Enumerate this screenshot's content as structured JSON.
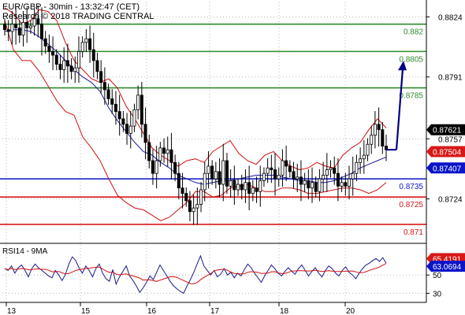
{
  "header": {
    "line1": "EUR/GBP - 30min - 13:32:47 (CET)",
    "line2": "Research © 2018 TRADING CENTRAL"
  },
  "colors": {
    "green_level": "#2e8b2e",
    "blue_level": "#0a14c8",
    "red_level": "#d81818",
    "bollinger": "#d01010",
    "ma": "#1a1aa0",
    "forecast": "#000080",
    "price": "#000000",
    "rsi": "#1a1a8c",
    "rsi_ma": "#d01010",
    "grid": "#b8b8b8"
  },
  "chart_data": [
    {
      "type": "candlestick",
      "title": "EUR/GBP - 30min - 13:32:47 (CET)",
      "x_labels": [
        "13",
        "15",
        "16",
        "17",
        "18",
        "20"
      ],
      "y_ticks": [
        0.8824,
        0.8791,
        0.8757,
        0.8724
      ],
      "ylim": [
        0.87,
        0.8832
      ],
      "grid": true,
      "levels": [
        {
          "value": 0.882,
          "label": "0.882",
          "color": "green"
        },
        {
          "value": 0.8805,
          "label": "0.8805",
          "color": "green"
        },
        {
          "value": 0.8785,
          "label": "0.8785",
          "color": "green"
        },
        {
          "value": 0.8735,
          "label": "0.8735",
          "color": "blue"
        },
        {
          "value": 0.8725,
          "label": "0.8725",
          "color": "red"
        },
        {
          "value": 0.871,
          "label": "0.871",
          "color": "red"
        }
      ],
      "price_tags": [
        {
          "value": 0.8762,
          "label": "0.87621",
          "style": "dark"
        },
        {
          "value": 0.875,
          "label": "0.87504",
          "style": "red"
        },
        {
          "value": 0.8741,
          "label": "0.87407",
          "style": "blue"
        }
      ],
      "close": [
        0.8817,
        0.8816,
        0.882,
        0.8818,
        0.8814,
        0.8821,
        0.8818,
        0.8819,
        0.8823,
        0.882,
        0.8812,
        0.8808,
        0.8805,
        0.8803,
        0.8798,
        0.8795,
        0.88,
        0.8797,
        0.8794,
        0.8796,
        0.8805,
        0.881,
        0.8812,
        0.8806,
        0.88,
        0.8794,
        0.8788,
        0.8784,
        0.8779,
        0.8776,
        0.8772,
        0.8768,
        0.8765,
        0.876,
        0.8764,
        0.8773,
        0.8781,
        0.8765,
        0.8755,
        0.8745,
        0.8738,
        0.8745,
        0.8752,
        0.8749,
        0.8751,
        0.8744,
        0.8738,
        0.873,
        0.8727,
        0.8723,
        0.8717,
        0.8719,
        0.8721,
        0.8729,
        0.8738,
        0.8742,
        0.8735,
        0.8739,
        0.8732,
        0.8745,
        0.8731,
        0.8734,
        0.8729,
        0.8732,
        0.8729,
        0.8733,
        0.8727,
        0.873,
        0.8728,
        0.8734,
        0.8738,
        0.8741,
        0.874,
        0.8735,
        0.8737,
        0.8745,
        0.8742,
        0.8739,
        0.8735,
        0.8736,
        0.8732,
        0.8734,
        0.873,
        0.8733,
        0.8728,
        0.8735,
        0.8737,
        0.874,
        0.8741,
        0.8738,
        0.8731,
        0.8733,
        0.8731,
        0.8735,
        0.8738,
        0.8744,
        0.8746,
        0.8748,
        0.8754,
        0.8759,
        0.8765,
        0.8762,
        0.8753,
        0.8751
      ],
      "forecast": [
        0.8751,
        0.8799
      ],
      "bollinger_upper": [
        0.8829,
        0.8826,
        0.882,
        0.8822,
        0.8828,
        0.8827,
        0.8822,
        0.881,
        0.88,
        0.8795,
        0.879,
        0.8788,
        0.879,
        0.8785,
        0.8775,
        0.8768,
        0.876,
        0.8752,
        0.8748,
        0.8745,
        0.8742,
        0.8745,
        0.8746,
        0.8744,
        0.875,
        0.8753,
        0.8756,
        0.8749,
        0.8745,
        0.8743,
        0.8748,
        0.875,
        0.8745,
        0.8742,
        0.874,
        0.8741,
        0.8744,
        0.8742,
        0.8741,
        0.8748,
        0.8752,
        0.8755,
        0.8762,
        0.8768,
        0.8763
      ],
      "bollinger_lower": [
        0.8822,
        0.8806,
        0.88,
        0.88,
        0.8794,
        0.8786,
        0.8778,
        0.8772,
        0.877,
        0.8758,
        0.8752,
        0.8745,
        0.8735,
        0.8726,
        0.8722,
        0.8719,
        0.8718,
        0.8715,
        0.8712,
        0.8714,
        0.8718,
        0.8722,
        0.8728,
        0.8728,
        0.8725,
        0.8726,
        0.873,
        0.8731,
        0.8732,
        0.873,
        0.8728,
        0.8728,
        0.873,
        0.873,
        0.8729,
        0.8727,
        0.8727,
        0.8728,
        0.8729,
        0.873,
        0.873,
        0.8729,
        0.8727,
        0.8729,
        0.8733
      ],
      "moving_average": [
        0.8816,
        0.8817,
        0.8817,
        0.8816,
        0.8813,
        0.8809,
        0.8805,
        0.88,
        0.8795,
        0.8791,
        0.8788,
        0.8783,
        0.8774,
        0.8767,
        0.8761,
        0.8755,
        0.875,
        0.8748,
        0.8744,
        0.8741,
        0.8737,
        0.8735,
        0.8733,
        0.8732,
        0.8733,
        0.8734,
        0.8734,
        0.8735,
        0.8736,
        0.8737,
        0.8737,
        0.8737,
        0.8736,
        0.8735,
        0.8734,
        0.8734,
        0.8733,
        0.8733,
        0.8734,
        0.8736,
        0.8738,
        0.8741,
        0.8743,
        0.8745,
        0.8747
      ]
    },
    {
      "type": "line",
      "title": "RSI14 - 9MA",
      "y_ticks": [
        50,
        30
      ],
      "ylim": [
        20,
        83
      ],
      "price_tags": [
        {
          "value": 65.4191,
          "label": "65.4191",
          "style": "red"
        },
        {
          "value": 63.0694,
          "label": "63.0694",
          "style": "blue"
        }
      ],
      "rsi": [
        57,
        55,
        60,
        52,
        58,
        61,
        55,
        48,
        57,
        62,
        58,
        55,
        52,
        49,
        47,
        55,
        50,
        44,
        51,
        62,
        70,
        66,
        58,
        52,
        60,
        55,
        48,
        57,
        62,
        52,
        46,
        43,
        56,
        40,
        48,
        54,
        60,
        49,
        44,
        38,
        31,
        36,
        42,
        49,
        45,
        53,
        61,
        55,
        49,
        43,
        38,
        35,
        32,
        30,
        38,
        45,
        53,
        62,
        71,
        60,
        55,
        50,
        55,
        48,
        51,
        57,
        50,
        53,
        47,
        52,
        49,
        56,
        62,
        58,
        52,
        47,
        42,
        49,
        55,
        61,
        57,
        52,
        49,
        54,
        58,
        54,
        51,
        57,
        61,
        55,
        49,
        54,
        58,
        52,
        48,
        55,
        60,
        57,
        52,
        49,
        55,
        59,
        53,
        50,
        46,
        52,
        57,
        61,
        63,
        66,
        68,
        65,
        69,
        63
      ]
    }
  ]
}
